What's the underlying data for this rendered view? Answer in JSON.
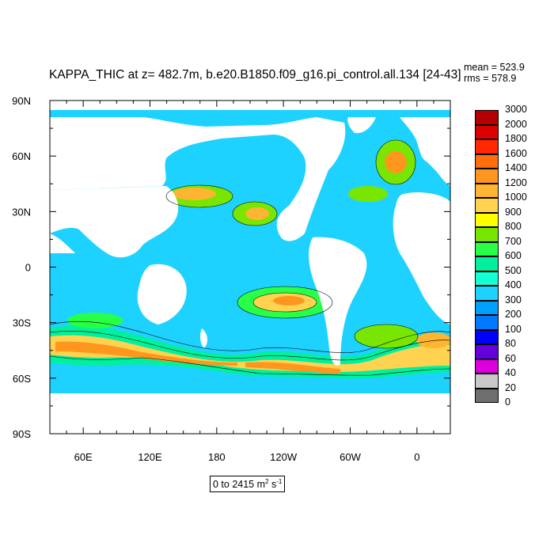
{
  "title": "KAPPA_THIC at z= 482.7m, b.e20.B1850.f09_g16.pi_control.all.134 [24-43]",
  "stats": {
    "mean": "mean = 523.9",
    "rms": "rms = 578.9"
  },
  "range": {
    "text": "0 to 2415 m",
    "unit_exp": "2",
    "unit_tail": " s",
    "unit_tail_exp": "-1"
  },
  "colors": {
    "land": "#ffffff",
    "ocean_base": "#1ed2ff"
  },
  "chart_data": {
    "type": "heatmap",
    "title": "KAPPA_THIC at z= 482.7m, b.e20.B1850.f09_g16.pi_control.all.134 [24-43]",
    "xlabel": "",
    "ylabel": "",
    "x_ticks": [
      "60E",
      "120E",
      "180",
      "120W",
      "60W",
      "0"
    ],
    "x_tick_values": [
      60,
      120,
      180,
      240,
      300,
      360
    ],
    "y_ticks": [
      "90N",
      "60N",
      "30N",
      "0",
      "30S",
      "60S",
      "90S"
    ],
    "y_tick_values": [
      90,
      60,
      30,
      0,
      -30,
      -60,
      -90
    ],
    "xlim": [
      30,
      390
    ],
    "ylim": [
      -90,
      90
    ],
    "colorbar": {
      "levels": [
        "3000",
        "2000",
        "1800",
        "1600",
        "1400",
        "1200",
        "1000",
        "900",
        "800",
        "700",
        "600",
        "500",
        "400",
        "300",
        "200",
        "100",
        "80",
        "60",
        "40",
        "20",
        "0"
      ],
      "colors": [
        "#b40000",
        "#dc0000",
        "#ff2800",
        "#ff6e0a",
        "#ff961e",
        "#ffb432",
        "#ffd250",
        "#ffff00",
        "#78e600",
        "#28ff46",
        "#00f09b",
        "#14ffd2",
        "#1ed2ff",
        "#00a0ff",
        "#0078ff",
        "#0000ff",
        "#6400dc",
        "#dc00dc",
        "#c8c8c8",
        "#6e6e6e"
      ]
    },
    "mean": 523.9,
    "rms": 578.9,
    "value_range": [
      0,
      2415
    ]
  }
}
